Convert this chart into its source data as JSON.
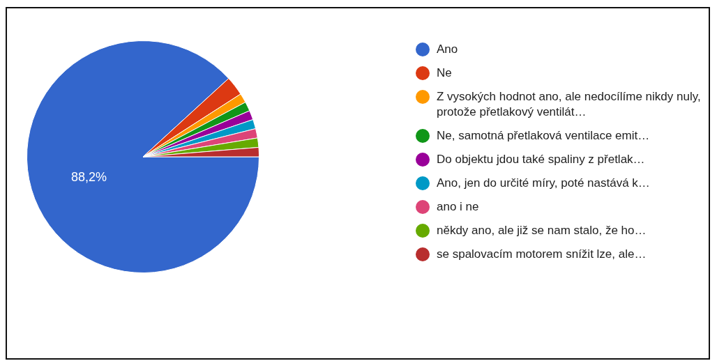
{
  "chart_data": {
    "type": "pie",
    "categories": [
      "Ano",
      "Ne",
      "Z vysokých hodnot ano, ale nedocílíme nikdy nuly, protože přetlakový ventilát…",
      "Ne, samotná přetlaková ventilace emit…",
      "Do objektu jdou také spaliny z přetlak…",
      "Ano, jen do určité míry, poté nastává k…",
      "ano i ne",
      "někdy ano, ale již se nam stalo, že ho…",
      "se spalovacím motorem snížit lze, ale…"
    ],
    "values": [
      88.2,
      2.7,
      1.3,
      1.3,
      1.3,
      1.3,
      1.3,
      1.3,
      1.3
    ],
    "colors": [
      "#3366cc",
      "#dc3912",
      "#ff9900",
      "#109618",
      "#990099",
      "#0099c6",
      "#dd4477",
      "#66aa00",
      "#b82e2e"
    ],
    "value_labels": [
      "88,2%",
      null,
      null,
      null,
      null,
      null,
      null,
      null,
      null
    ],
    "legend": "right"
  }
}
